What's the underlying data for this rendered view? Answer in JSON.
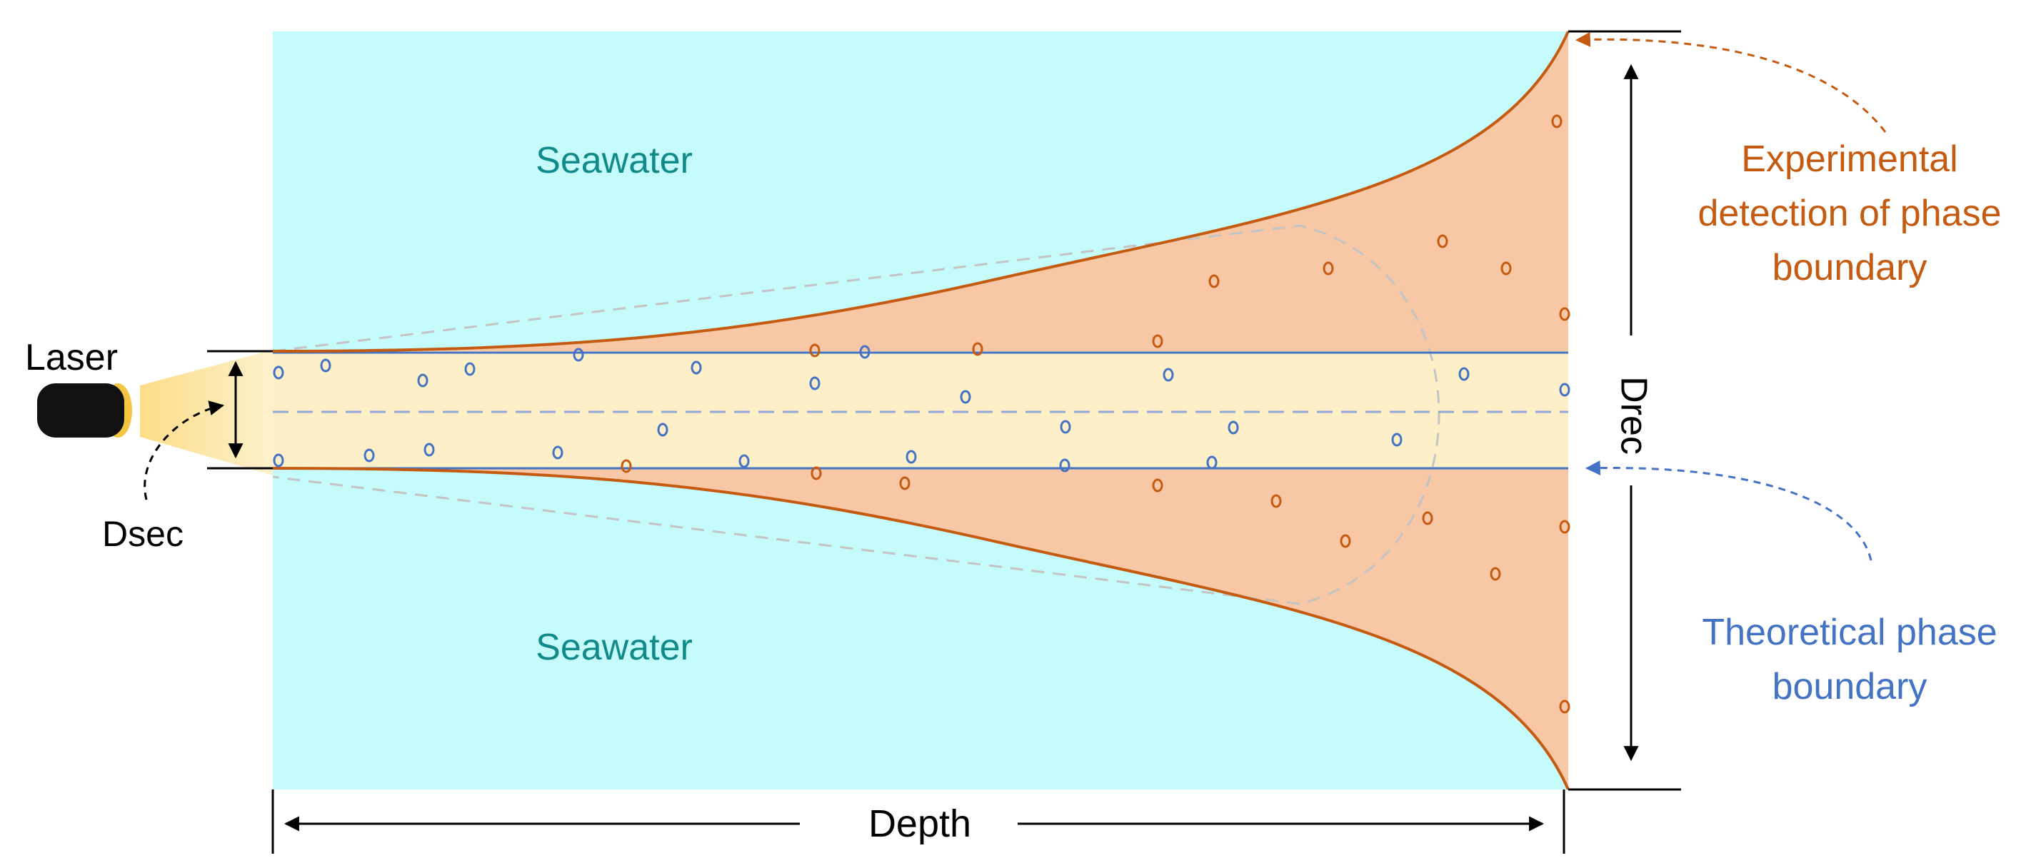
{
  "labels": {
    "laser": "Laser",
    "dsec": "Dsec",
    "seawater_top": "Seawater",
    "seawater_bottom": "Seawater",
    "drec": "Drec",
    "depth": "Depth",
    "experimental_line1": "Experimental",
    "experimental_line2": "detection of phase",
    "experimental_line3": "boundary",
    "theoretical_line1": "Theoretical phase",
    "theoretical_line2": "boundary"
  },
  "colors": {
    "seawater": "#c6fbfb",
    "seawater_text": "#138a8a",
    "beam": "#fdf0c8",
    "plume": "#f7c7a6",
    "experimental": "#c55a11",
    "theoretical": "#4472c4",
    "laser_body": "#111111",
    "laser_lens": "#f4c542"
  }
}
